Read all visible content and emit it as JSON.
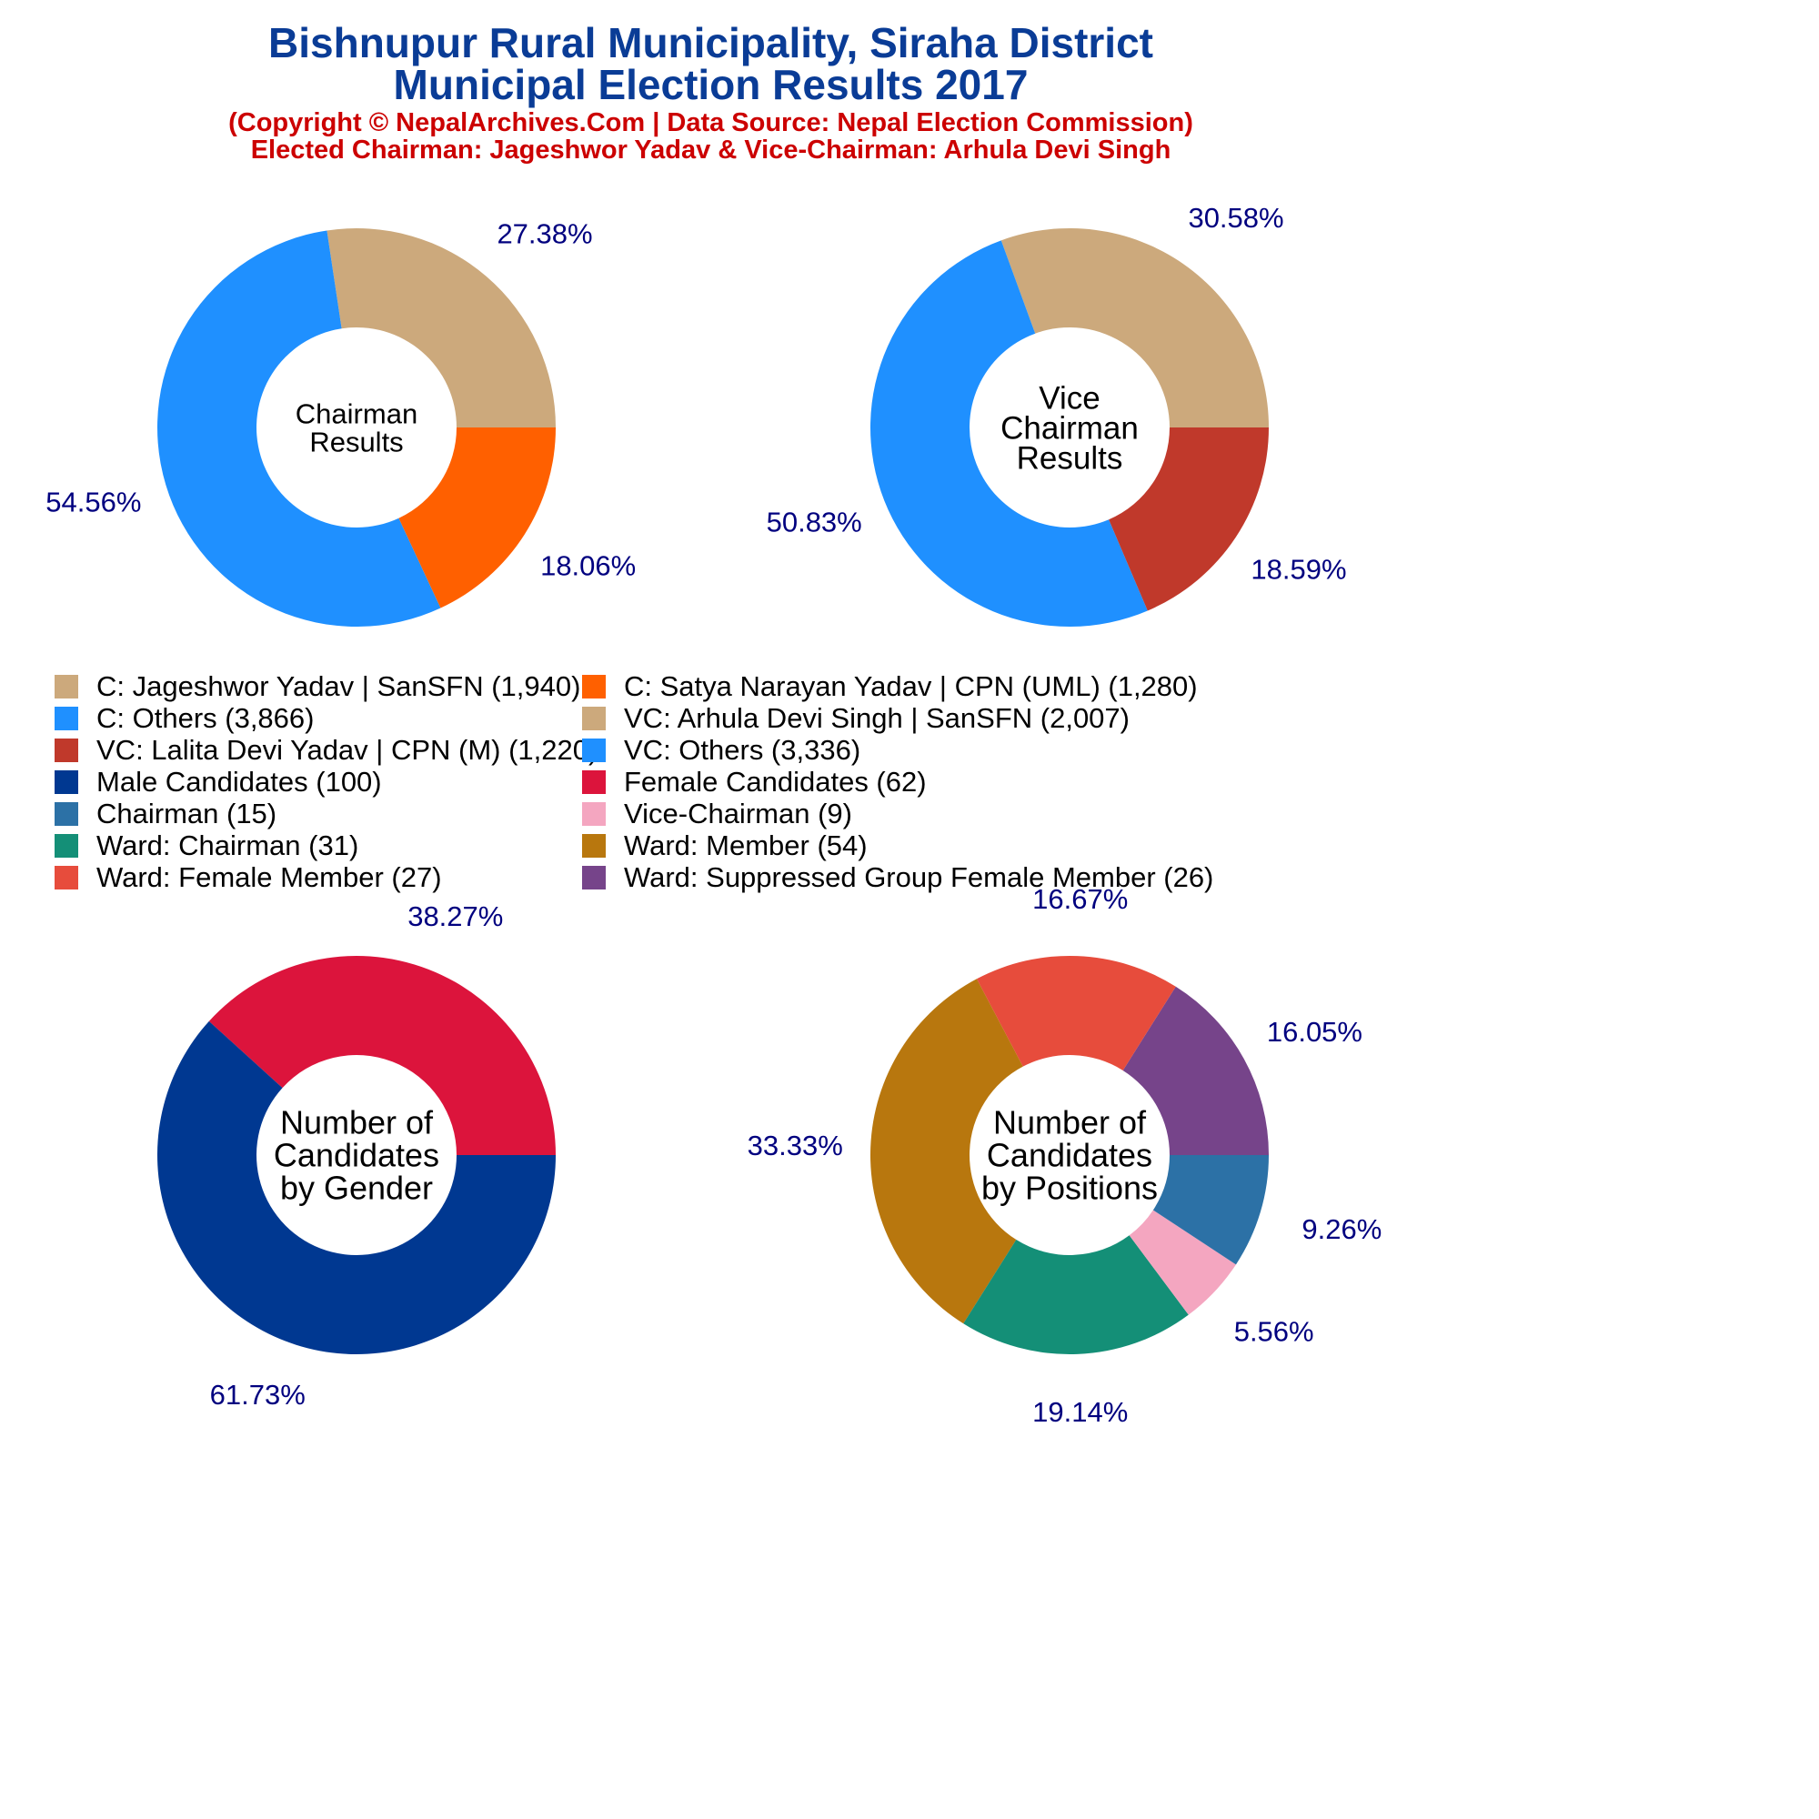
{
  "header": {
    "title_line1": "Bishnupur Rural Municipality, Siraha District",
    "title_line2": "Municipal Election Results 2017",
    "subtitle_line1": "(Copyright © NepalArchives.Com | Data Source: Nepal Election Commission)",
    "subtitle_line2": "Elected Chairman: Jageshwor Yadav & Vice-Chairman: Arhula Devi Singh"
  },
  "colors": {
    "title": "#0a3c96",
    "subtitle": "#cc0000",
    "percent_label": "#00007f"
  },
  "legend": [
    {
      "label": "C: Jageshwor Yadav | SanSFN (1,940)",
      "color": "#cca97c"
    },
    {
      "label": "C: Satya Narayan Yadav | CPN (UML) (1,280)",
      "color": "#ff6000"
    },
    {
      "label": "C: Others (3,866)",
      "color": "#1f90ff"
    },
    {
      "label": "VC: Arhula Devi Singh | SanSFN (2,007)",
      "color": "#cca97c"
    },
    {
      "label": "VC: Lalita Devi Yadav | CPN (M) (1,220)",
      "color": "#c0392b"
    },
    {
      "label": "VC: Others (3,336)",
      "color": "#1f90ff"
    },
    {
      "label": "Male Candidates (100)",
      "color": "#003891"
    },
    {
      "label": "Female Candidates (62)",
      "color": "#dc143c"
    },
    {
      "label": "Chairman (15)",
      "color": "#2c71a6"
    },
    {
      "label": "Vice-Chairman (9)",
      "color": "#f4a6c0"
    },
    {
      "label": "Ward: Chairman (31)",
      "color": "#148f77"
    },
    {
      "label": "Ward: Member (54)",
      "color": "#b8770e"
    },
    {
      "label": "Ward: Female Member (27)",
      "color": "#e74c3c"
    },
    {
      "label": "Ward: Suppressed Group Female Member (26)",
      "color": "#76448a"
    }
  ],
  "chart_data": [
    {
      "type": "pie",
      "center_label": [
        "Chairman",
        "Results"
      ],
      "slices": [
        {
          "name": "C: Jageshwor Yadav | SanSFN",
          "value": 1940,
          "percent": "27.38%",
          "color": "#cca97c"
        },
        {
          "name": "C: Others",
          "value": 3866,
          "percent": "54.56%",
          "color": "#1f90ff"
        },
        {
          "name": "C: Satya Narayan Yadav | CPN (UML)",
          "value": 1280,
          "percent": "18.06%",
          "color": "#ff6000"
        }
      ]
    },
    {
      "type": "pie",
      "center_label": [
        "Vice",
        "Chairman",
        "Results"
      ],
      "slices": [
        {
          "name": "VC: Arhula Devi Singh | SanSFN",
          "value": 2007,
          "percent": "30.58%",
          "color": "#cca97c"
        },
        {
          "name": "VC: Others",
          "value": 3336,
          "percent": "50.83%",
          "color": "#1f90ff"
        },
        {
          "name": "VC: Lalita Devi Yadav | CPN (M)",
          "value": 1220,
          "percent": "18.59%",
          "color": "#c0392b"
        }
      ]
    },
    {
      "type": "pie",
      "center_label": [
        "Number of",
        "Candidates",
        "by Gender"
      ],
      "slices": [
        {
          "name": "Female Candidates",
          "value": 62,
          "percent": "38.27%",
          "color": "#dc143c"
        },
        {
          "name": "Male Candidates",
          "value": 100,
          "percent": "61.73%",
          "color": "#003891"
        }
      ]
    },
    {
      "type": "pie",
      "center_label": [
        "Number of",
        "Candidates",
        "by Positions"
      ],
      "slices": [
        {
          "name": "Ward: Suppressed Group Female Member",
          "value": 26,
          "percent": "16.05%",
          "color": "#76448a"
        },
        {
          "name": "Ward: Female Member",
          "value": 27,
          "percent": "16.67%",
          "color": "#e74c3c"
        },
        {
          "name": "Ward: Member",
          "value": 54,
          "percent": "33.33%",
          "color": "#b8770e"
        },
        {
          "name": "Ward: Chairman",
          "value": 31,
          "percent": "19.14%",
          "color": "#148f77"
        },
        {
          "name": "Vice-Chairman",
          "value": 9,
          "percent": "5.56%",
          "color": "#f4a6c0"
        },
        {
          "name": "Chairman",
          "value": 15,
          "percent": "9.26%",
          "color": "#2c71a6"
        }
      ]
    }
  ]
}
